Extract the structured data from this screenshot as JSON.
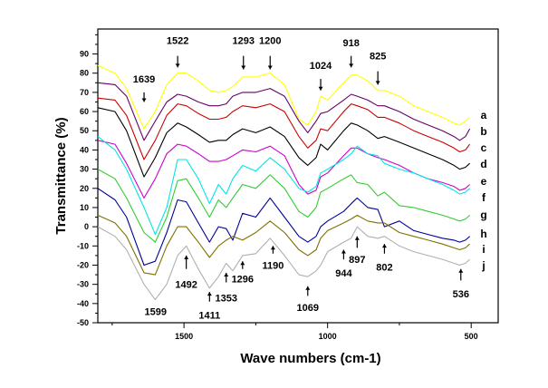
{
  "chart_data": {
    "type": "line",
    "title": "",
    "xlabel": "Wave numbers (cm-1)",
    "ylabel": "Transmittance (%)",
    "xlim": [
      1800,
      406
    ],
    "ylim": [
      -50,
      103
    ],
    "x_reversed": true,
    "grid": false,
    "x_ticks": [
      1500,
      1000,
      500
    ],
    "x_tick_labels": [
      "1500",
      "1000",
      "500"
    ],
    "y_ticks": [
      -50,
      -40,
      -30,
      -20,
      -10,
      0,
      10,
      20,
      30,
      40,
      50,
      60,
      70,
      80,
      90
    ],
    "y_tick_labels": [
      "-50",
      "-40",
      "-30",
      "-20",
      "-10",
      "0",
      "10",
      "20",
      "30",
      "40",
      "50",
      "60",
      "70",
      "80",
      "90"
    ],
    "x": [
      1800,
      1740,
      1700,
      1639,
      1600,
      1560,
      1522,
      1492,
      1450,
      1411,
      1380,
      1353,
      1330,
      1296,
      1250,
      1200,
      1150,
      1100,
      1069,
      1040,
      1024,
      1000,
      944,
      918,
      897,
      860,
      825,
      802,
      750,
      700,
      650,
      600,
      560,
      540,
      520,
      505
    ],
    "series": [
      {
        "name": "a",
        "color": "#ffff00",
        "values": [
          84,
          80,
          72,
          51,
          60,
          74,
          80,
          80,
          76,
          71,
          70,
          71,
          73,
          78,
          78,
          80,
          74,
          56,
          53,
          60,
          68,
          66,
          75,
          79,
          79,
          76,
          71,
          71,
          68,
          63,
          60,
          57,
          54,
          53,
          55,
          57
        ]
      },
      {
        "name": "b",
        "color": "#660066",
        "values": [
          75,
          74,
          68,
          45,
          55,
          65,
          69,
          68,
          65,
          63,
          63,
          64,
          68,
          70,
          70,
          72,
          68,
          55,
          49,
          55,
          59,
          60,
          66,
          69,
          68,
          66,
          63,
          63,
          60,
          56,
          53,
          50,
          47,
          45,
          47,
          51
        ]
      },
      {
        "name": "c",
        "color": "#cc0000",
        "values": [
          67,
          66,
          58,
          35,
          45,
          58,
          64,
          63,
          59,
          56,
          56,
          57,
          60,
          63,
          62,
          64,
          60,
          47,
          41,
          45,
          51,
          50,
          60,
          64,
          63,
          61,
          57,
          57,
          54,
          50,
          47,
          44,
          41,
          39,
          40,
          43
        ]
      },
      {
        "name": "d",
        "color": "#000000",
        "values": [
          62,
          60,
          50,
          26,
          36,
          49,
          54,
          52,
          48,
          44,
          45,
          45,
          48,
          51,
          49,
          52,
          47,
          36,
          32,
          36,
          43,
          40,
          50,
          54,
          53,
          50,
          46,
          47,
          44,
          41,
          38,
          35,
          32,
          30,
          31,
          33
        ]
      },
      {
        "name": "e",
        "color": "#cc00cc",
        "values": [
          45,
          43,
          33,
          15,
          25,
          38,
          43,
          42,
          38,
          34,
          34,
          35,
          37,
          40,
          39,
          42,
          37,
          22,
          17,
          19,
          26,
          28,
          37,
          41,
          41,
          38,
          36,
          35,
          32,
          28,
          25,
          23,
          21,
          19,
          20,
          22
        ]
      },
      {
        "name": "f",
        "color": "#00e5e5",
        "values": [
          47,
          40,
          30,
          10,
          -4,
          10,
          35,
          35,
          25,
          12,
          22,
          17,
          25,
          32,
          29,
          36,
          30,
          20,
          18,
          21,
          28,
          30,
          35,
          38,
          42,
          38,
          37,
          33,
          30,
          28,
          25,
          22,
          19,
          17,
          18,
          20
        ]
      },
      {
        "name": "g",
        "color": "#33cc33",
        "values": [
          30,
          25,
          15,
          -3,
          -8,
          5,
          24,
          25,
          15,
          5,
          14,
          10,
          15,
          22,
          20,
          27,
          20,
          8,
          5,
          10,
          18,
          20,
          25,
          27,
          23,
          22,
          16,
          18,
          11,
          10,
          8,
          6,
          4,
          3,
          4,
          6
        ]
      },
      {
        "name": "h",
        "color": "#000099",
        "values": [
          20,
          14,
          5,
          -20,
          -18,
          -3,
          14,
          13,
          2,
          -8,
          0,
          -1,
          -7,
          7,
          5,
          15,
          5,
          -5,
          -8,
          -5,
          0,
          3,
          8,
          12,
          15,
          10,
          9,
          0,
          3,
          -2,
          -4,
          -6,
          -7,
          -8,
          -7,
          -5
        ]
      },
      {
        "name": "i",
        "color": "#807000",
        "values": [
          6,
          2,
          -5,
          -24,
          -25,
          -10,
          0,
          0,
          -8,
          -16,
          -10,
          -7,
          -5,
          -7,
          -3,
          3,
          -3,
          -12,
          -15,
          -12,
          -6,
          -2,
          2,
          4,
          6,
          3,
          2,
          2,
          -3,
          -5,
          -7,
          -9,
          -11,
          -12,
          -11,
          -9
        ]
      },
      {
        "name": "j",
        "color": "#b0b0b0",
        "values": [
          0,
          -5,
          -12,
          -30,
          -38,
          -30,
          -15,
          -10,
          -22,
          -32,
          -26,
          -19,
          -23,
          -15,
          -14,
          -6,
          -15,
          -25,
          -26,
          -23,
          -20,
          -13,
          -8,
          -6,
          0,
          -5,
          -6,
          -5,
          -10,
          -13,
          -15,
          -17,
          -19,
          -20,
          -19,
          -17
        ]
      }
    ],
    "annotations": [
      {
        "label": "1639",
        "x": 1639,
        "label_y": 77,
        "arrow_from": 70,
        "arrow_to": 65,
        "dir": "down"
      },
      {
        "label": "1522",
        "x": 1522,
        "label_y": 97,
        "arrow_from": 89,
        "arrow_to": 83,
        "dir": "down"
      },
      {
        "label": "1293",
        "x": 1293,
        "label_y": 97,
        "arrow_from": 89,
        "arrow_to": 82,
        "dir": "down"
      },
      {
        "label": "1200",
        "x": 1200,
        "label_y": 97,
        "arrow_from": 89,
        "arrow_to": 82,
        "dir": "down"
      },
      {
        "label": "1024",
        "x": 1024,
        "label_y": 84,
        "arrow_from": 77,
        "arrow_to": 71,
        "dir": "down"
      },
      {
        "label": "918",
        "x": 918,
        "label_y": 96,
        "arrow_from": 89,
        "arrow_to": 83,
        "dir": "down"
      },
      {
        "label": "825",
        "x": 825,
        "label_y": 89,
        "arrow_from": 81,
        "arrow_to": 74,
        "dir": "down"
      },
      {
        "label": "1599",
        "x": 1599,
        "label_y": -44,
        "dir": "none"
      },
      {
        "label": "1492",
        "x": 1492,
        "label_y": -30,
        "arrow_from": -22,
        "arrow_to": -15,
        "dir": "up"
      },
      {
        "label": "1411",
        "x": 1411,
        "label_y": -46,
        "arrow_from": -39,
        "arrow_to": -34,
        "dir": "up"
      },
      {
        "label": "1353",
        "x": 1353,
        "label_y": -37,
        "dir": "upleft",
        "arrow_from": -29,
        "arrow_to": -24
      },
      {
        "label": "1296",
        "x": 1296,
        "label_y": -27,
        "arrow_from": -22,
        "arrow_to": -18,
        "dir": "up"
      },
      {
        "label": "1190",
        "x": 1190,
        "label_y": -20,
        "arrow_from": -14,
        "arrow_to": -10,
        "dir": "up"
      },
      {
        "label": "1069",
        "x": 1069,
        "label_y": -42,
        "arrow_from": -36,
        "arrow_to": -31,
        "dir": "up"
      },
      {
        "label": "944",
        "x": 944,
        "label_y": -24,
        "arrow_from": -17,
        "arrow_to": -12,
        "dir": "up"
      },
      {
        "label": "897",
        "x": 897,
        "label_y": -17,
        "arrow_from": -11,
        "arrow_to": -5,
        "dir": "up"
      },
      {
        "label": "802",
        "x": 802,
        "label_y": -21,
        "arrow_from": -14,
        "arrow_to": -9,
        "dir": "up"
      },
      {
        "label": "536",
        "x": 536,
        "label_y": -35,
        "arrow_from": -28,
        "arrow_to": -22,
        "dir": "up"
      }
    ]
  }
}
